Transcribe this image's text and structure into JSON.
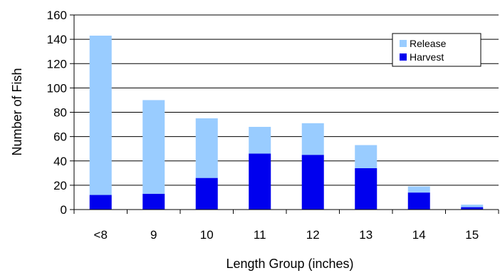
{
  "chart_data": {
    "type": "bar",
    "stacked": true,
    "categories": [
      "<8",
      "9",
      "10",
      "11",
      "12",
      "13",
      "14",
      "15"
    ],
    "series": [
      {
        "name": "Harvest",
        "values": [
          12,
          13,
          26,
          46,
          45,
          34,
          14,
          2
        ],
        "color": "#0000ee"
      },
      {
        "name": "Release",
        "values": [
          131,
          77,
          49,
          22,
          26,
          19,
          5,
          2
        ],
        "color": "#99ccff"
      }
    ],
    "title": "",
    "xlabel": "Length Group (inches)",
    "ylabel": "Number of Fish",
    "ylim": [
      0,
      160
    ],
    "yticks": [
      "0",
      "20",
      "40",
      "60",
      "80",
      "100",
      "120",
      "140",
      "160"
    ],
    "grid": true,
    "legend": {
      "placement": "top-right",
      "entries": [
        "Release",
        "Harvest"
      ]
    }
  }
}
